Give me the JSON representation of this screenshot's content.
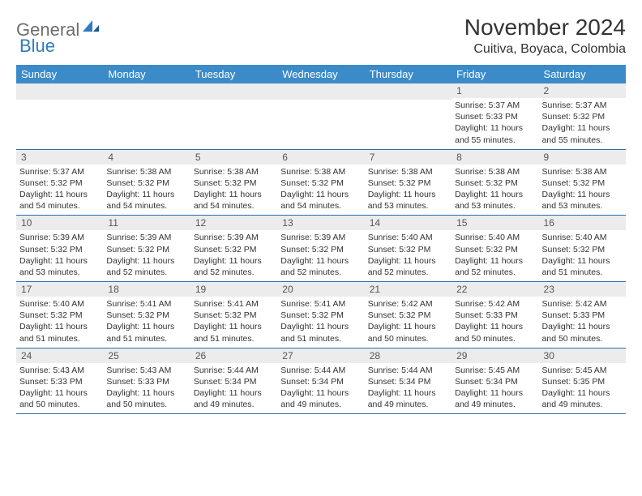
{
  "logo": {
    "part1": "General",
    "part2": "Blue"
  },
  "title": "November 2024",
  "location": "Cuitiva, Boyaca, Colombia",
  "colors": {
    "header_bg": "#3b8bc9",
    "row_divider": "#2a6ea8",
    "daynum_bg": "#ececec",
    "logo_gray": "#6e6e6e",
    "logo_blue": "#2f7bbf"
  },
  "weekdays": [
    "Sunday",
    "Monday",
    "Tuesday",
    "Wednesday",
    "Thursday",
    "Friday",
    "Saturday"
  ],
  "weeks": [
    [
      {
        "n": "",
        "lines": []
      },
      {
        "n": "",
        "lines": []
      },
      {
        "n": "",
        "lines": []
      },
      {
        "n": "",
        "lines": []
      },
      {
        "n": "",
        "lines": []
      },
      {
        "n": "1",
        "lines": [
          "Sunrise: 5:37 AM",
          "Sunset: 5:33 PM",
          "Daylight: 11 hours and 55 minutes."
        ]
      },
      {
        "n": "2",
        "lines": [
          "Sunrise: 5:37 AM",
          "Sunset: 5:32 PM",
          "Daylight: 11 hours and 55 minutes."
        ]
      }
    ],
    [
      {
        "n": "3",
        "lines": [
          "Sunrise: 5:37 AM",
          "Sunset: 5:32 PM",
          "Daylight: 11 hours and 54 minutes."
        ]
      },
      {
        "n": "4",
        "lines": [
          "Sunrise: 5:38 AM",
          "Sunset: 5:32 PM",
          "Daylight: 11 hours and 54 minutes."
        ]
      },
      {
        "n": "5",
        "lines": [
          "Sunrise: 5:38 AM",
          "Sunset: 5:32 PM",
          "Daylight: 11 hours and 54 minutes."
        ]
      },
      {
        "n": "6",
        "lines": [
          "Sunrise: 5:38 AM",
          "Sunset: 5:32 PM",
          "Daylight: 11 hours and 54 minutes."
        ]
      },
      {
        "n": "7",
        "lines": [
          "Sunrise: 5:38 AM",
          "Sunset: 5:32 PM",
          "Daylight: 11 hours and 53 minutes."
        ]
      },
      {
        "n": "8",
        "lines": [
          "Sunrise: 5:38 AM",
          "Sunset: 5:32 PM",
          "Daylight: 11 hours and 53 minutes."
        ]
      },
      {
        "n": "9",
        "lines": [
          "Sunrise: 5:38 AM",
          "Sunset: 5:32 PM",
          "Daylight: 11 hours and 53 minutes."
        ]
      }
    ],
    [
      {
        "n": "10",
        "lines": [
          "Sunrise: 5:39 AM",
          "Sunset: 5:32 PM",
          "Daylight: 11 hours and 53 minutes."
        ]
      },
      {
        "n": "11",
        "lines": [
          "Sunrise: 5:39 AM",
          "Sunset: 5:32 PM",
          "Daylight: 11 hours and 52 minutes."
        ]
      },
      {
        "n": "12",
        "lines": [
          "Sunrise: 5:39 AM",
          "Sunset: 5:32 PM",
          "Daylight: 11 hours and 52 minutes."
        ]
      },
      {
        "n": "13",
        "lines": [
          "Sunrise: 5:39 AM",
          "Sunset: 5:32 PM",
          "Daylight: 11 hours and 52 minutes."
        ]
      },
      {
        "n": "14",
        "lines": [
          "Sunrise: 5:40 AM",
          "Sunset: 5:32 PM",
          "Daylight: 11 hours and 52 minutes."
        ]
      },
      {
        "n": "15",
        "lines": [
          "Sunrise: 5:40 AM",
          "Sunset: 5:32 PM",
          "Daylight: 11 hours and 52 minutes."
        ]
      },
      {
        "n": "16",
        "lines": [
          "Sunrise: 5:40 AM",
          "Sunset: 5:32 PM",
          "Daylight: 11 hours and 51 minutes."
        ]
      }
    ],
    [
      {
        "n": "17",
        "lines": [
          "Sunrise: 5:40 AM",
          "Sunset: 5:32 PM",
          "Daylight: 11 hours and 51 minutes."
        ]
      },
      {
        "n": "18",
        "lines": [
          "Sunrise: 5:41 AM",
          "Sunset: 5:32 PM",
          "Daylight: 11 hours and 51 minutes."
        ]
      },
      {
        "n": "19",
        "lines": [
          "Sunrise: 5:41 AM",
          "Sunset: 5:32 PM",
          "Daylight: 11 hours and 51 minutes."
        ]
      },
      {
        "n": "20",
        "lines": [
          "Sunrise: 5:41 AM",
          "Sunset: 5:32 PM",
          "Daylight: 11 hours and 51 minutes."
        ]
      },
      {
        "n": "21",
        "lines": [
          "Sunrise: 5:42 AM",
          "Sunset: 5:32 PM",
          "Daylight: 11 hours and 50 minutes."
        ]
      },
      {
        "n": "22",
        "lines": [
          "Sunrise: 5:42 AM",
          "Sunset: 5:33 PM",
          "Daylight: 11 hours and 50 minutes."
        ]
      },
      {
        "n": "23",
        "lines": [
          "Sunrise: 5:42 AM",
          "Sunset: 5:33 PM",
          "Daylight: 11 hours and 50 minutes."
        ]
      }
    ],
    [
      {
        "n": "24",
        "lines": [
          "Sunrise: 5:43 AM",
          "Sunset: 5:33 PM",
          "Daylight: 11 hours and 50 minutes."
        ]
      },
      {
        "n": "25",
        "lines": [
          "Sunrise: 5:43 AM",
          "Sunset: 5:33 PM",
          "Daylight: 11 hours and 50 minutes."
        ]
      },
      {
        "n": "26",
        "lines": [
          "Sunrise: 5:44 AM",
          "Sunset: 5:34 PM",
          "Daylight: 11 hours and 49 minutes."
        ]
      },
      {
        "n": "27",
        "lines": [
          "Sunrise: 5:44 AM",
          "Sunset: 5:34 PM",
          "Daylight: 11 hours and 49 minutes."
        ]
      },
      {
        "n": "28",
        "lines": [
          "Sunrise: 5:44 AM",
          "Sunset: 5:34 PM",
          "Daylight: 11 hours and 49 minutes."
        ]
      },
      {
        "n": "29",
        "lines": [
          "Sunrise: 5:45 AM",
          "Sunset: 5:34 PM",
          "Daylight: 11 hours and 49 minutes."
        ]
      },
      {
        "n": "30",
        "lines": [
          "Sunrise: 5:45 AM",
          "Sunset: 5:35 PM",
          "Daylight: 11 hours and 49 minutes."
        ]
      }
    ]
  ]
}
